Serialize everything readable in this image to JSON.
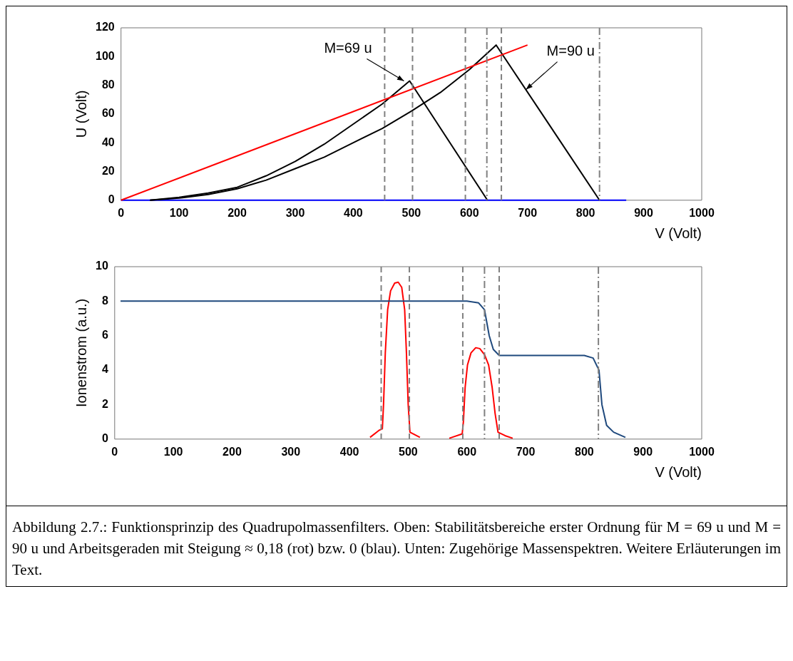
{
  "chart_data": [
    {
      "type": "line",
      "ylabel": "U (Volt)",
      "xlabel": "V (Volt)",
      "xlim": [
        0,
        1000
      ],
      "ylim": [
        0,
        120
      ],
      "xticks": [
        0,
        100,
        200,
        300,
        400,
        500,
        600,
        700,
        800,
        900,
        1000
      ],
      "yticks": [
        0,
        20,
        40,
        60,
        80,
        100,
        120
      ],
      "grid": false,
      "legend": false,
      "series": [
        {
          "color": "#ff0000",
          "x": [
            0,
            700
          ],
          "values": [
            0,
            108
          ]
        },
        {
          "color": "#000000",
          "x": [
            50,
            100,
            150,
            200,
            250,
            300,
            350,
            400,
            450,
            497,
            631
          ],
          "values": [
            0,
            2,
            5,
            9,
            17,
            27,
            39,
            53,
            67,
            83,
            0
          ]
        },
        {
          "color": "#000000",
          "x": [
            50,
            100,
            150,
            200,
            250,
            300,
            350,
            400,
            450,
            500,
            550,
            600,
            646,
            824
          ],
          "values": [
            0,
            1.5,
            4,
            8,
            14,
            22,
            30,
            40,
            50,
            62,
            75,
            91,
            108,
            0
          ]
        },
        {
          "color": "#0000ff",
          "x": [
            0,
            870
          ],
          "values": [
            0,
            0
          ]
        }
      ],
      "annotations": [
        {
          "text": "M=69 u",
          "x": 497,
          "y": 83
        },
        {
          "text": "M=90 u",
          "x": 690,
          "y": 81
        }
      ],
      "ref_lines": [
        {
          "axis": "x",
          "value": 454,
          "color": "#808080",
          "line_style": "dashed"
        },
        {
          "axis": "x",
          "value": 502,
          "color": "#808080",
          "line_style": "dashed"
        },
        {
          "axis": "x",
          "value": 593,
          "color": "#808080",
          "line_style": "dashed"
        },
        {
          "axis": "x",
          "value": 655,
          "color": "#808080",
          "line_style": "dashed"
        },
        {
          "axis": "x",
          "value": 630,
          "color": "#808080",
          "line_style": "dashdot"
        },
        {
          "axis": "x",
          "value": 824,
          "color": "#808080",
          "line_style": "dashdot"
        }
      ]
    },
    {
      "type": "line",
      "ylabel": "Ionenstrom (a.u.)",
      "xlabel": "V (Volt)",
      "xlim": [
        0,
        1000
      ],
      "ylim": [
        0,
        10
      ],
      "xticks": [
        0,
        100,
        200,
        300,
        400,
        500,
        600,
        700,
        800,
        900,
        1000
      ],
      "yticks": [
        0,
        2,
        4,
        6,
        8,
        10
      ],
      "grid": false,
      "legend": false,
      "series": [
        {
          "color": "#1f497d",
          "x": [
            10,
            600,
            620,
            630,
            638,
            645,
            655,
            800,
            815,
            825,
            830,
            838,
            850,
            870
          ],
          "values": [
            8,
            8,
            7.9,
            7.5,
            6,
            5.2,
            4.85,
            4.85,
            4.7,
            4,
            2,
            0.8,
            0.4,
            0.1
          ]
        },
        {
          "color": "#ff0000",
          "x": [
            435,
            450,
            456,
            458,
            461,
            465,
            470,
            477,
            483,
            489,
            494,
            497,
            500,
            503,
            520,
            545,
            570,
            592,
            594,
            597,
            601,
            607,
            615,
            622,
            630,
            637,
            643,
            648,
            653,
            665,
            678
          ],
          "values": [
            0.1,
            0.5,
            0.6,
            2,
            5,
            7.5,
            8.6,
            9.05,
            9.1,
            8.8,
            7.5,
            5,
            2,
            0.4,
            0.1,
            null,
            0.05,
            0.3,
            1,
            3,
            4.3,
            5,
            5.3,
            5.25,
            4.9,
            4.3,
            3,
            1.5,
            0.4,
            0.2,
            0.05
          ]
        }
      ],
      "ref_lines": [
        {
          "axis": "x",
          "value": 454,
          "color": "#808080",
          "line_style": "dashed"
        },
        {
          "axis": "x",
          "value": 502,
          "color": "#808080",
          "line_style": "dashed"
        },
        {
          "axis": "x",
          "value": 593,
          "color": "#808080",
          "line_style": "dashed"
        },
        {
          "axis": "x",
          "value": 655,
          "color": "#808080",
          "line_style": "dashed"
        },
        {
          "axis": "x",
          "value": 630,
          "color": "#808080",
          "line_style": "dashdot"
        },
        {
          "axis": "x",
          "value": 824,
          "color": "#808080",
          "line_style": "dashdot"
        }
      ],
      "annotations": [
        "Abbildung 2.7.: Funktionsprinzip des Quadrupolmassenfilters. Oben: Stabilitätsbereiche erster Ordnung für M = 69 u und M = 90 u und Arbeitsgeraden mit Steigung ≈ 0,18 (rot) bzw. 0 (blau). Unten: Zugehörige Massenspektren. Weitere Erläuterungen im Text."
      ]
    }
  ]
}
